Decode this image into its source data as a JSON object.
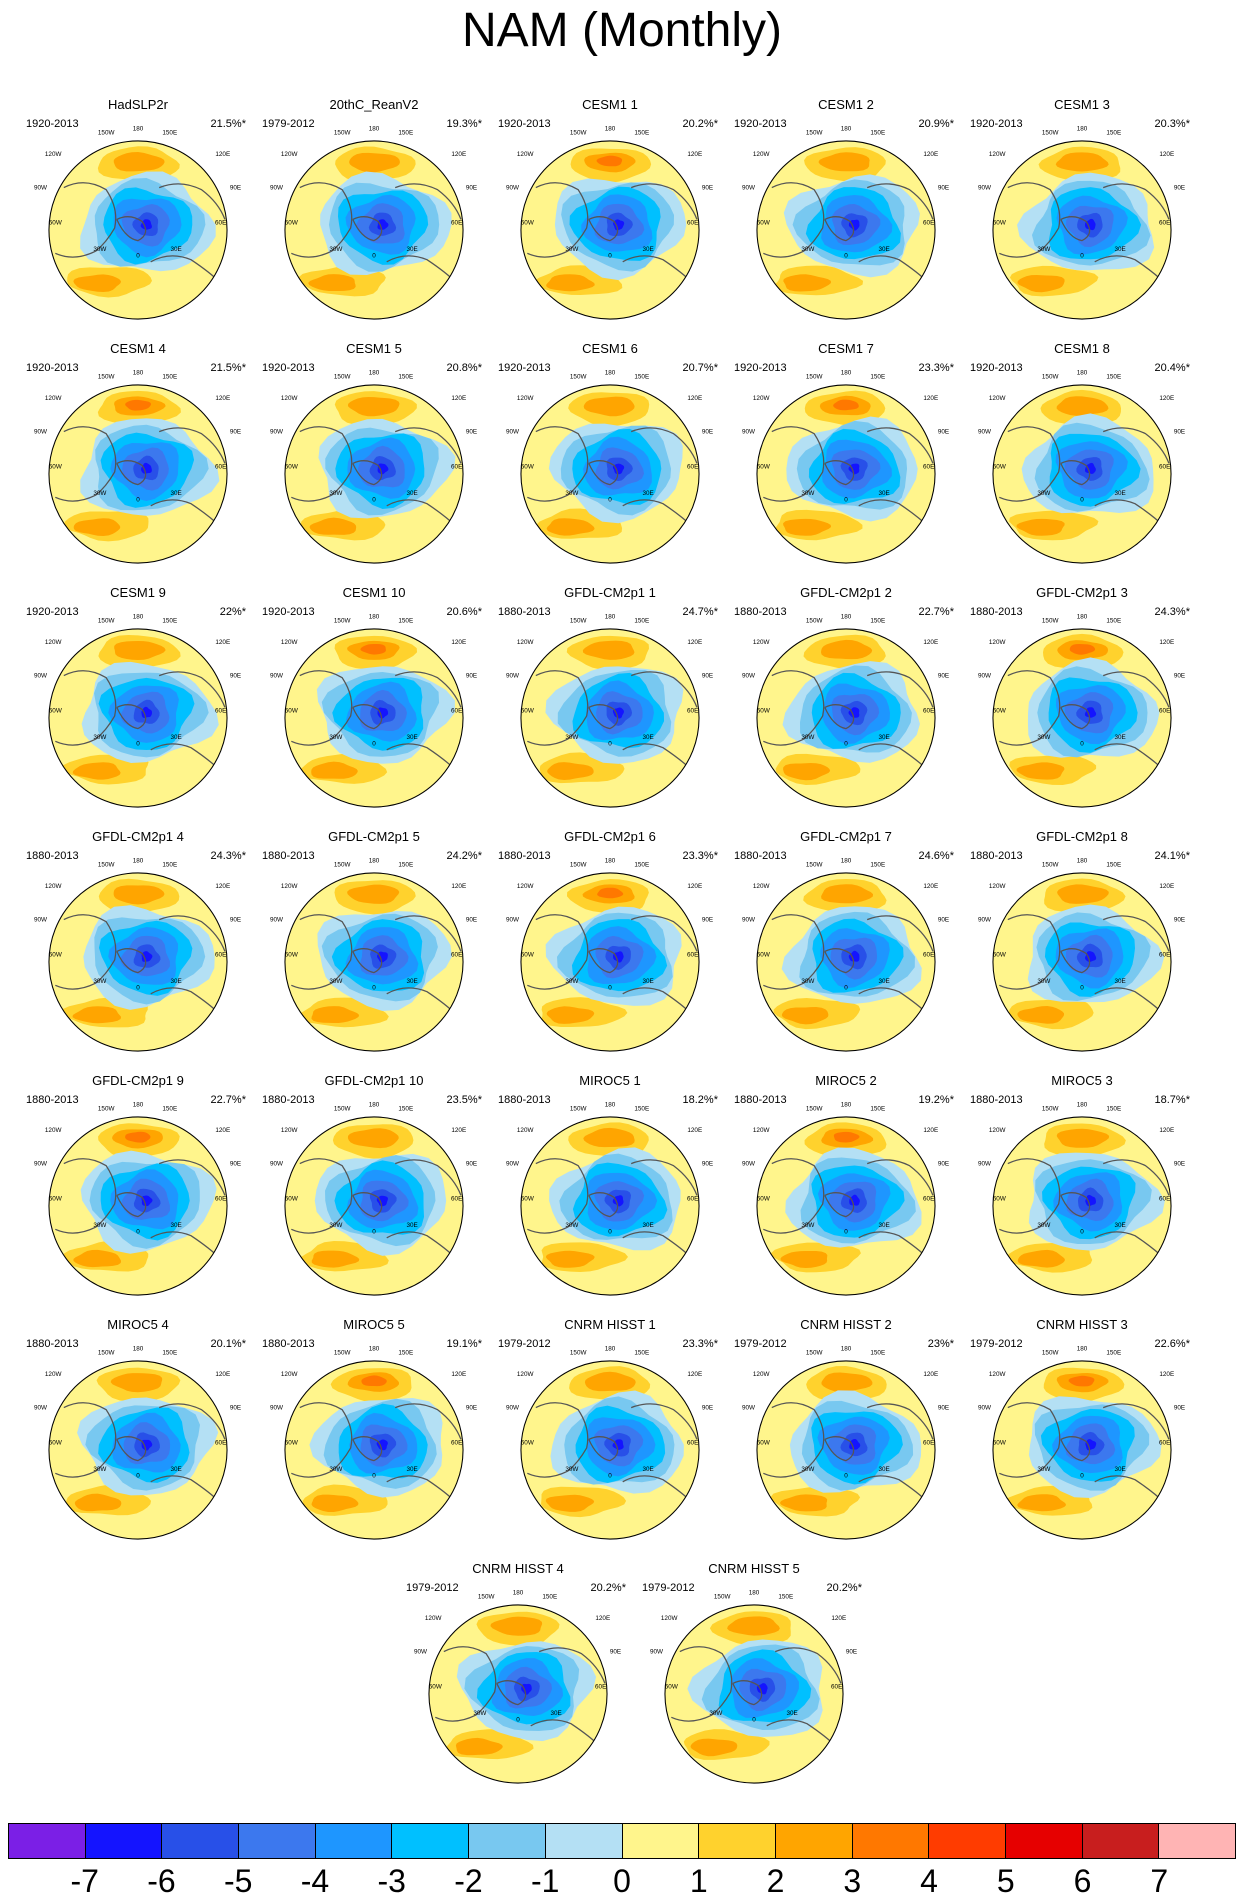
{
  "title": "NAM (Monthly)",
  "longitude_labels": [
    "180",
    "150W",
    "150E",
    "120W",
    "120E",
    "90W",
    "90E",
    "60W",
    "60E",
    "30W",
    "30E",
    "0"
  ],
  "panels": [
    {
      "name": "HadSLP2r",
      "period": "1920-2013",
      "variance": "21.5%*"
    },
    {
      "name": "20thC_ReanV2",
      "period": "1979-2012",
      "variance": "19.3%*"
    },
    {
      "name": "CESM1 1",
      "period": "1920-2013",
      "variance": "20.2%*"
    },
    {
      "name": "CESM1 2",
      "period": "1920-2013",
      "variance": "20.9%*"
    },
    {
      "name": "CESM1 3",
      "period": "1920-2013",
      "variance": "20.3%*"
    },
    {
      "name": "CESM1 4",
      "period": "1920-2013",
      "variance": "21.5%*"
    },
    {
      "name": "CESM1 5",
      "period": "1920-2013",
      "variance": "20.8%*"
    },
    {
      "name": "CESM1 6",
      "period": "1920-2013",
      "variance": "20.7%*"
    },
    {
      "name": "CESM1 7",
      "period": "1920-2013",
      "variance": "23.3%*"
    },
    {
      "name": "CESM1 8",
      "period": "1920-2013",
      "variance": "20.4%*"
    },
    {
      "name": "CESM1 9",
      "period": "1920-2013",
      "variance": "22%*"
    },
    {
      "name": "CESM1 10",
      "period": "1920-2013",
      "variance": "20.6%*"
    },
    {
      "name": "GFDL-CM2p1 1",
      "period": "1880-2013",
      "variance": "24.7%*"
    },
    {
      "name": "GFDL-CM2p1 2",
      "period": "1880-2013",
      "variance": "22.7%*"
    },
    {
      "name": "GFDL-CM2p1 3",
      "period": "1880-2013",
      "variance": "24.3%*"
    },
    {
      "name": "GFDL-CM2p1 4",
      "period": "1880-2013",
      "variance": "24.3%*"
    },
    {
      "name": "GFDL-CM2p1 5",
      "period": "1880-2013",
      "variance": "24.2%*"
    },
    {
      "name": "GFDL-CM2p1 6",
      "period": "1880-2013",
      "variance": "23.3%*"
    },
    {
      "name": "GFDL-CM2p1 7",
      "period": "1880-2013",
      "variance": "24.6%*"
    },
    {
      "name": "GFDL-CM2p1 8",
      "period": "1880-2013",
      "variance": "24.1%*"
    },
    {
      "name": "GFDL-CM2p1 9",
      "period": "1880-2013",
      "variance": "22.7%*"
    },
    {
      "name": "GFDL-CM2p1 10",
      "period": "1880-2013",
      "variance": "23.5%*"
    },
    {
      "name": "MIROC5 1",
      "period": "1880-2013",
      "variance": "18.2%*"
    },
    {
      "name": "MIROC5 2",
      "period": "1880-2013",
      "variance": "19.2%*"
    },
    {
      "name": "MIROC5 3",
      "period": "1880-2013",
      "variance": "18.7%*"
    },
    {
      "name": "MIROC5 4",
      "period": "1880-2013",
      "variance": "20.1%*"
    },
    {
      "name": "MIROC5 5",
      "period": "1880-2013",
      "variance": "19.1%*"
    },
    {
      "name": "CNRM HISST 1",
      "period": "1979-2012",
      "variance": "23.3%*"
    },
    {
      "name": "CNRM HISST 2",
      "period": "1979-2012",
      "variance": "23%*"
    },
    {
      "name": "CNRM HISST 3",
      "period": "1979-2012",
      "variance": "22.6%*"
    },
    {
      "name": "CNRM HISST 4",
      "period": "1979-2012",
      "variance": "20.2%*"
    },
    {
      "name": "CNRM HISST 5",
      "period": "1979-2012",
      "variance": "20.2%*"
    }
  ],
  "colorbar": {
    "labels": [
      "-7",
      "-6",
      "-5",
      "-4",
      "-3",
      "-2",
      "-1",
      "0",
      "1",
      "2",
      "3",
      "4",
      "5",
      "6",
      "7"
    ],
    "colors": [
      "#7b1fe6",
      "#1414ff",
      "#2850e8",
      "#3c78ee",
      "#1e96ff",
      "#00c0ff",
      "#78c8f0",
      "#b4e0f4",
      "#fff58c",
      "#ffd22d",
      "#ffa500",
      "#ff7800",
      "#ff3c00",
      "#e60000",
      "#c81e1e",
      "#ffb4b4"
    ]
  }
}
